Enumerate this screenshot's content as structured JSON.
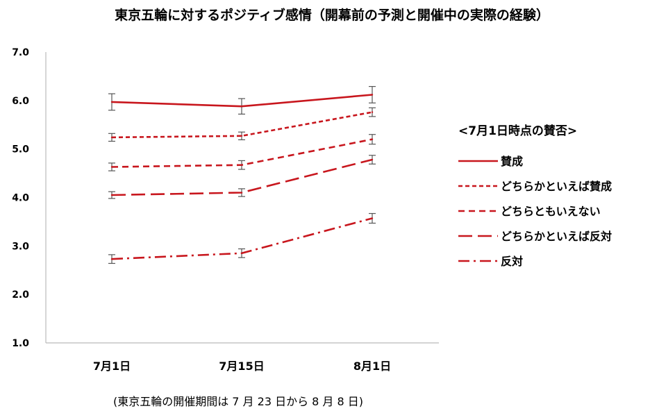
{
  "chart_data": {
    "type": "line",
    "title": "東京五輪に対するポジティブ感情（開幕前の予測と開催中の実際の経験）",
    "categories": [
      "7月1日",
      "7月15日",
      "8月1日"
    ],
    "ylim": [
      1.0,
      7.0
    ],
    "yticks": [
      "1.0",
      "2.0",
      "3.0",
      "4.0",
      "5.0",
      "6.0",
      "7.0"
    ],
    "grid": false,
    "legend_title": "<7月1日時点の賛否>",
    "legend_position": "right",
    "note": "(東京五輪の開催期間は 7 月 23 日から 8 月 8 日)",
    "color": "#c8161d",
    "error_bar_color": "#555555",
    "series": [
      {
        "name": "賛成",
        "dash": "solid",
        "values": [
          5.97,
          5.88,
          6.12
        ],
        "error": [
          0.17,
          0.16,
          0.17
        ]
      },
      {
        "name": "どちらかといえば賛成",
        "dash": "short-dash",
        "values": [
          5.24,
          5.27,
          5.76
        ],
        "error": [
          0.08,
          0.08,
          0.09
        ]
      },
      {
        "name": "どちらともいえない",
        "dash": "medium-dash",
        "values": [
          4.63,
          4.67,
          5.2
        ],
        "error": [
          0.08,
          0.09,
          0.1
        ]
      },
      {
        "name": "どちらかといえば反対",
        "dash": "long-dash",
        "values": [
          4.05,
          4.1,
          4.78
        ],
        "error": [
          0.07,
          0.08,
          0.09
        ]
      },
      {
        "name": "反対",
        "dash": "dash-dot",
        "values": [
          2.73,
          2.85,
          3.57
        ],
        "error": [
          0.09,
          0.09,
          0.1
        ]
      }
    ]
  }
}
